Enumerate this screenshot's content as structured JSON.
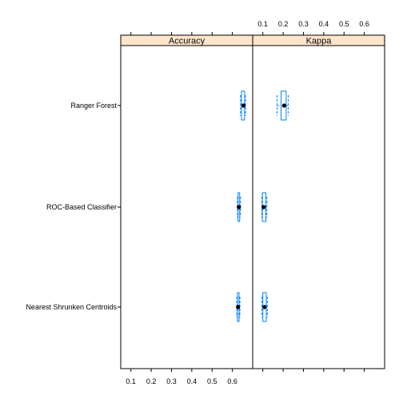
{
  "chart_data": {
    "type": "box",
    "panels": [
      "Accuracy",
      "Kappa"
    ],
    "categories": [
      "Ranger Forest",
      "ROC-Based Classifier",
      "Nearest Shrunken Centroids"
    ],
    "xlim": [
      0.05,
      0.7
    ],
    "ticks": [
      0.1,
      0.2,
      0.3,
      0.4,
      0.5,
      0.6
    ],
    "tick_labels": [
      "0.1",
      "0.2",
      "0.3",
      "0.4",
      "0.5",
      "0.6"
    ],
    "bottom_tick_panel": "Accuracy",
    "top_tick_panel": "Kappa",
    "colors": {
      "box": "#0080ff",
      "median": "#000000",
      "strip": "#ffe5cc"
    },
    "series": [
      {
        "name": "Accuracy",
        "boxes": [
          {
            "category": "Ranger Forest",
            "whisker_low": 0.64,
            "q1": 0.645,
            "median": 0.655,
            "q3": 0.66,
            "whisker_high": 0.665
          },
          {
            "category": "ROC-Based Classifier",
            "whisker_low": 0.625,
            "q1": 0.628,
            "median": 0.632,
            "q3": 0.636,
            "whisker_high": 0.64
          },
          {
            "category": "Nearest Shrunken Centroids",
            "whisker_low": 0.622,
            "q1": 0.625,
            "median": 0.628,
            "q3": 0.633,
            "whisker_high": 0.637
          }
        ]
      },
      {
        "name": "Kappa",
        "boxes": [
          {
            "category": "Ranger Forest",
            "whisker_low": 0.17,
            "q1": 0.19,
            "median": 0.205,
            "q3": 0.215,
            "whisker_high": 0.225
          },
          {
            "category": "ROC-Based Classifier",
            "whisker_low": 0.095,
            "q1": 0.098,
            "median": 0.104,
            "q3": 0.115,
            "whisker_high": 0.12
          },
          {
            "category": "Nearest Shrunken Centroids",
            "whisker_low": 0.095,
            "q1": 0.1,
            "median": 0.108,
            "q3": 0.117,
            "whisker_high": 0.122
          }
        ]
      }
    ]
  }
}
